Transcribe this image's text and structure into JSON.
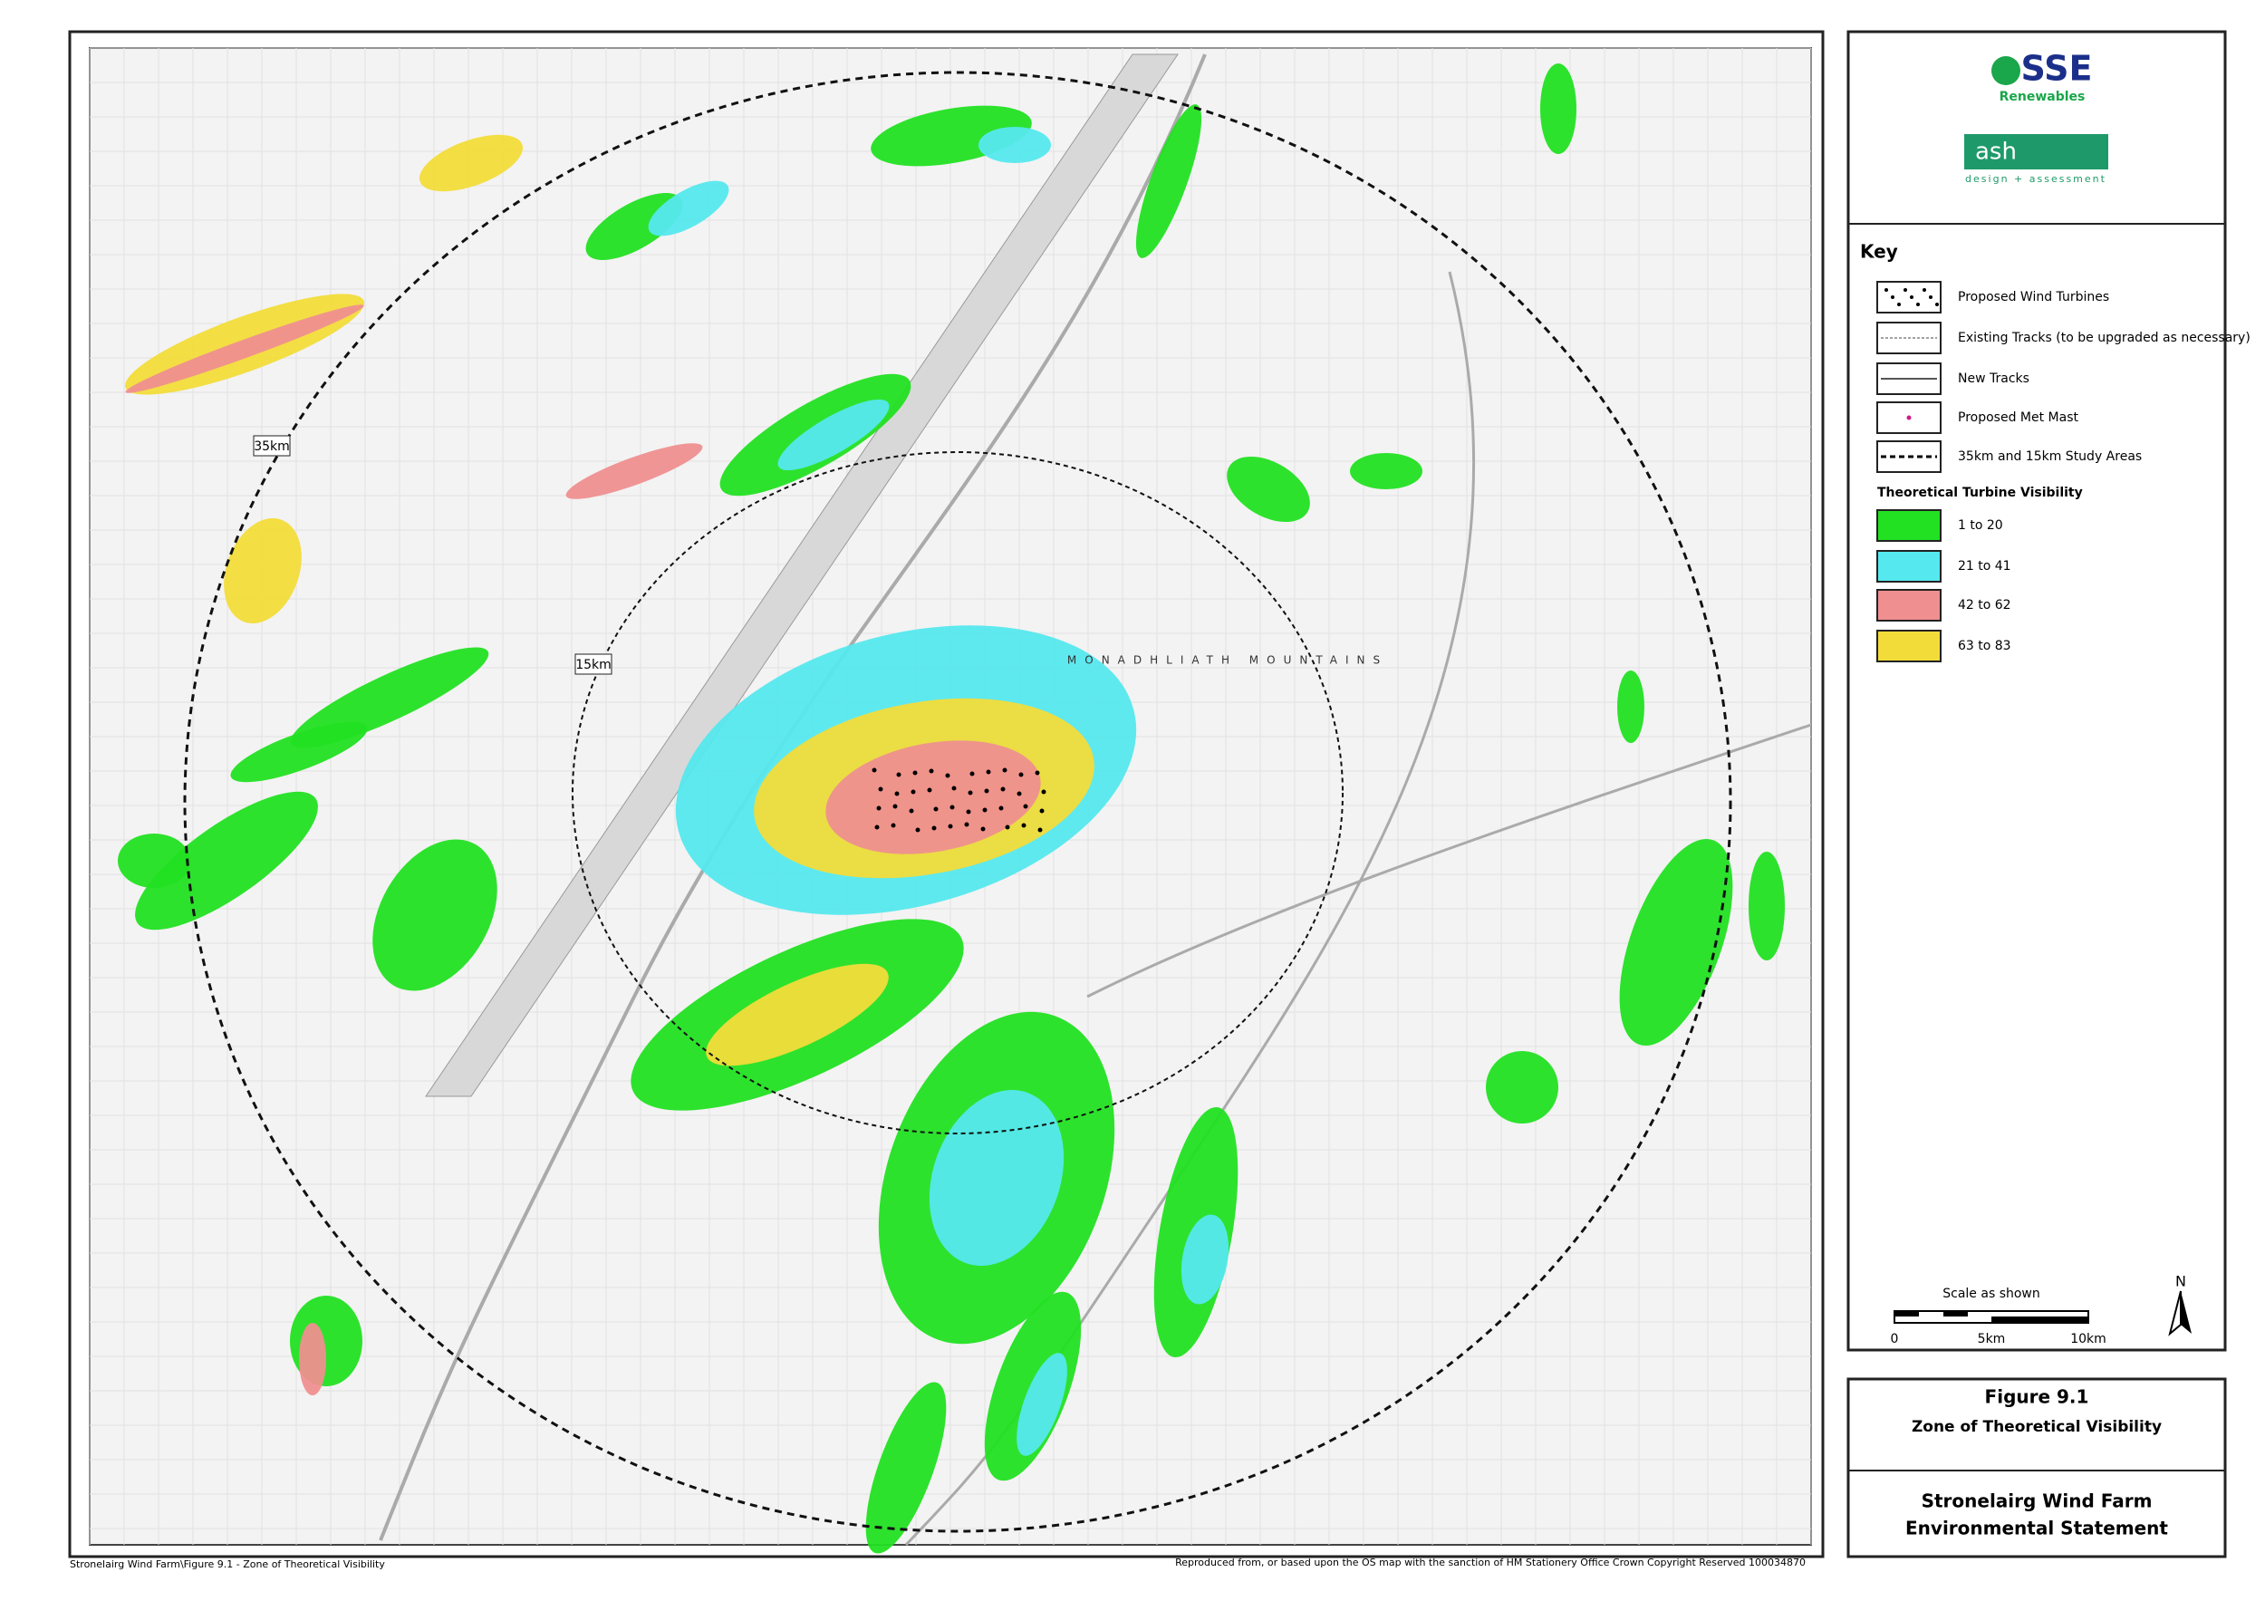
{
  "header": {
    "logo": "SSE",
    "logo_subtitle": "Renewables",
    "partner": "ash",
    "partner_tagline": "design + assessment"
  },
  "key": {
    "title": "Key",
    "items": [
      {
        "label": "Proposed Wind Turbines"
      },
      {
        "label": "Existing Tracks (to be upgraded as necessary)"
      },
      {
        "label": "New Tracks"
      },
      {
        "label": "Proposed Met Mast"
      },
      {
        "label": "35km and 15km Study Areas"
      }
    ],
    "visibility_title": "Theoretical Turbine Visibility",
    "classes": [
      {
        "label": "1 to 20",
        "color": "#22e022"
      },
      {
        "label": "21 to 41",
        "color": "#55e8ee"
      },
      {
        "label": "42 to 62",
        "color": "#ef8f8f"
      },
      {
        "label": "63 to 83",
        "color": "#f2dc3a"
      }
    ]
  },
  "scale": {
    "title": "Scale as shown",
    "labels": [
      "0",
      "5km",
      "10km"
    ]
  },
  "north": "N",
  "map": {
    "labels": [
      "35km",
      "15km",
      "MONADHLIATH MOUNTAINS"
    ]
  },
  "figure": {
    "number": "Figure 9.1",
    "title": "Zone of Theoretical Visibility",
    "project": "Stronelairg Wind Farm",
    "document": "Environmental Statement"
  },
  "footer": {
    "left": "Stronelairg Wind Farm\\Figure 9.1 - Zone of Theoretical Visibility",
    "right": "Reproduced from, or based upon the OS map with the sanction of HM Stationery Office Crown Copyright Reserved 100034870"
  }
}
